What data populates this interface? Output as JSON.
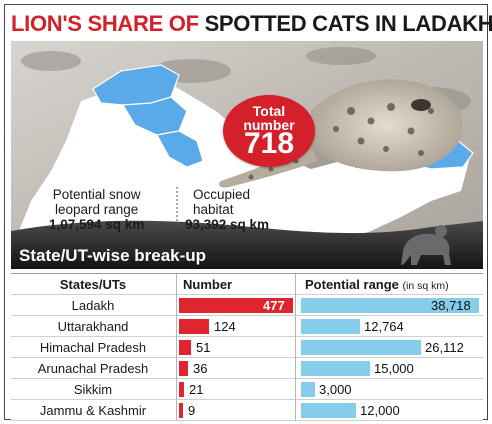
{
  "headline": {
    "part1": "LION'S SHARE OF",
    "part2": "SPOTTED CATS IN LADAKH"
  },
  "badge": {
    "label_line1": "Total",
    "label_line2": "number",
    "value": "718"
  },
  "info": {
    "potential_label_1": "Potential snow",
    "potential_label_2": "leopard range",
    "potential_value": "1,07,594 sq km",
    "occupied_label_1": "Occupied",
    "occupied_label_2": "habitat",
    "occupied_value": "93,392 sq km"
  },
  "section_title": "State/UT-wise break-up",
  "colors": {
    "accent_red": "#d4202a",
    "bar_red": "#e02530",
    "bar_blue": "#86cceb",
    "map_blue": "#5aa9e8"
  },
  "chart_data": {
    "type": "table",
    "columns": [
      "States/UTs",
      "Number",
      "Potential range"
    ],
    "range_unit": "(in sq km)",
    "rows": [
      {
        "state": "Ladakh",
        "number": 477,
        "number_label": "477",
        "range": 38718,
        "range_label": "38,718"
      },
      {
        "state": "Uttarakhand",
        "number": 124,
        "number_label": "124",
        "range": 12764,
        "range_label": "12,764"
      },
      {
        "state": "Himachal Pradesh",
        "number": 51,
        "number_label": "51",
        "range": 26112,
        "range_label": "26,112"
      },
      {
        "state": "Arunachal Pradesh",
        "number": 36,
        "number_label": "36",
        "range": 15000,
        "range_label": "15,000"
      },
      {
        "state": "Sikkim",
        "number": 21,
        "number_label": "21",
        "range": 3000,
        "range_label": "3,000"
      },
      {
        "state": "Jammu & Kashmir",
        "number": 9,
        "number_label": "9",
        "range": 12000,
        "range_label": "12,000"
      }
    ]
  }
}
